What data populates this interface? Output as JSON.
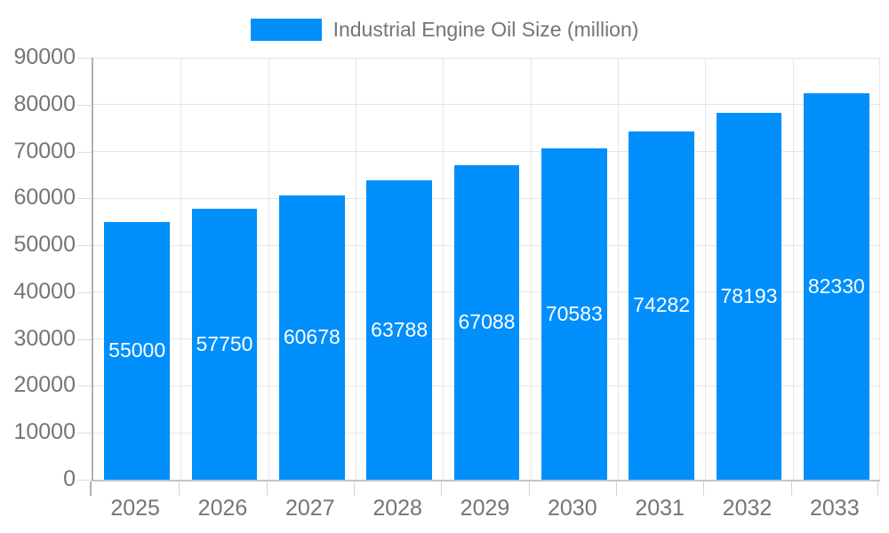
{
  "chart_data": {
    "type": "bar",
    "title": "Industrial Engine Oil Size (million)",
    "legend_label": "Industrial Engine Oil Size (million)",
    "categories": [
      "2025",
      "2026",
      "2027",
      "2028",
      "2029",
      "2030",
      "2031",
      "2032",
      "2033"
    ],
    "values": [
      55000,
      57750,
      60678,
      63788,
      67088,
      70583,
      74282,
      78193,
      82330
    ],
    "xlabel": "",
    "ylabel": "",
    "ylim": [
      0,
      90000
    ],
    "y_ticks": [
      0,
      10000,
      20000,
      30000,
      40000,
      50000,
      60000,
      70000,
      80000,
      90000
    ],
    "grid": true,
    "legend_position": "top-center",
    "bar_label_position": "center-inside",
    "colors": {
      "bar": "#008FFB",
      "bar_label": "#ffffff",
      "legend_text": "#757575",
      "axis_text": "#757575",
      "gridline": "#e7e7e7",
      "y_axis_line": "#b1b1b1",
      "x_axis_line": "#c4c4c4",
      "tick": "#d2d2d2",
      "background": "#ffffff"
    }
  }
}
